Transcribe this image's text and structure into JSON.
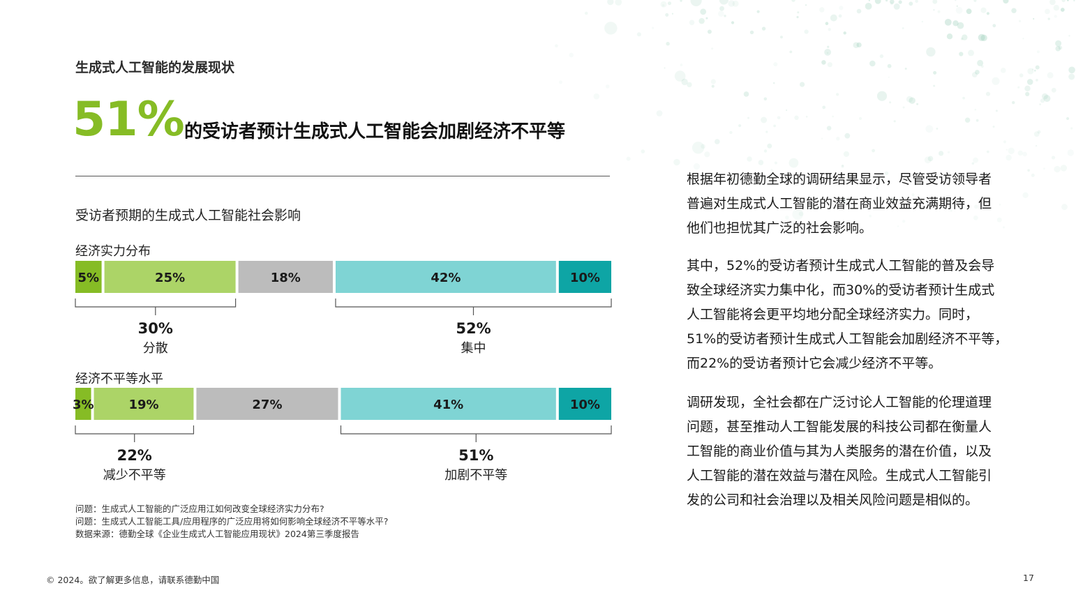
{
  "section_label": "生成式人工智能的发展现状",
  "headline": {
    "big_percent": "51%",
    "text": "的受访者预计生成式人工智能会加剧经济不平等"
  },
  "chart_subtitle": "受访者预期的生成式人工智能社会影响",
  "colors": {
    "green_dark": "#86bc25",
    "green_light": "#acd467",
    "gray": "#bcbcbc",
    "teal_light": "#7fd4d4",
    "teal_dark": "#0ea5a5",
    "accent_green": "#86bc25"
  },
  "chart_data": [
    {
      "type": "bar",
      "stacked": true,
      "orientation": "horizontal",
      "title": "经济实力分布",
      "segments": [
        {
          "value": 5,
          "label": "5%",
          "color": "#86bc25"
        },
        {
          "value": 25,
          "label": "25%",
          "color": "#acd467"
        },
        {
          "value": 18,
          "label": "18%",
          "color": "#bcbcbc"
        },
        {
          "value": 42,
          "label": "42%",
          "color": "#7fd4d4"
        },
        {
          "value": 10,
          "label": "10%",
          "color": "#0ea5a5"
        }
      ],
      "groups": [
        {
          "from": 0,
          "to": 1,
          "total": "30%",
          "name": "分散"
        },
        {
          "from": 3,
          "to": 4,
          "total": "52%",
          "name": "集中"
        }
      ]
    },
    {
      "type": "bar",
      "stacked": true,
      "orientation": "horizontal",
      "title": "经济不平等水平",
      "segments": [
        {
          "value": 3,
          "label": "3%",
          "color": "#86bc25"
        },
        {
          "value": 19,
          "label": "19%",
          "color": "#acd467"
        },
        {
          "value": 27,
          "label": "27%",
          "color": "#bcbcbc"
        },
        {
          "value": 41,
          "label": "41%",
          "color": "#7fd4d4"
        },
        {
          "value": 10,
          "label": "10%",
          "color": "#0ea5a5"
        }
      ],
      "groups": [
        {
          "from": 0,
          "to": 1,
          "total": "22%",
          "name": "减少不平等"
        },
        {
          "from": 3,
          "to": 4,
          "total": "51%",
          "name": "加剧不平等"
        }
      ]
    }
  ],
  "notes": [
    "问题：生成式人工智能的广泛应用江如何改变全球经济实力分布?",
    "问题：生成式人工智能工具/应用程序的广泛应用将如何影响全球经济不平等水平?",
    "数据来源：德勤全球《企业生成式人工智能应用现状》2024第三季度报告"
  ],
  "body_paragraphs": [
    [
      "根据年初德勤全球的调研结果显示，尽管受访领导者",
      "普遍对生成式人工智能的潜在商业效益充满期待，但",
      "他们也担忧其广泛的社会影响。"
    ],
    [
      "其中，52%的受访者预计生成式人工智能的普及会导",
      "致全球经济实力集中化，而30%的受访者预计生成式",
      "人工智能将会更平均地分配全球经济实力。同时，",
      "51%的受访者预计生成式人工智能会加剧经济不平等，",
      "而22%的受访者预计它会减少经济不平等。"
    ],
    [
      "调研发现，全社会都在广泛讨论人工智能的伦理道理",
      "问题，甚至推动人工智能发展的科技公司都在衡量人",
      "工智能的商业价值与其为人类服务的潜在价值，以及",
      "人工智能的潜在效益与潜在风险。生成式人工智能引",
      "发的公司和社会治理以及相关风险问题是相似的。"
    ]
  ],
  "footer": {
    "copyright": "© 2024。欲了解更多信息，请联系德勤中国",
    "page_number": "17"
  }
}
